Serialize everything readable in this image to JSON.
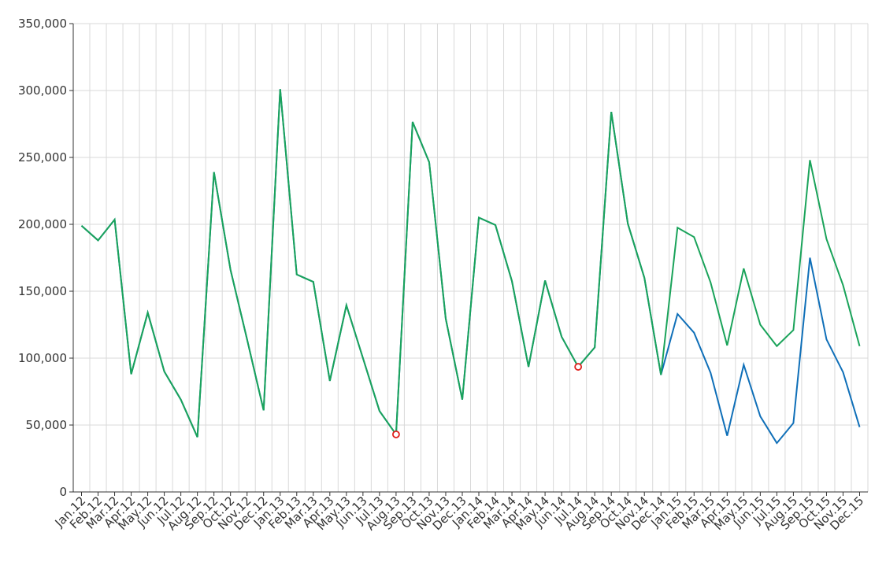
{
  "chart_data": {
    "type": "line",
    "categories": [
      "Jan.12",
      "Feb.12",
      "Mar.12",
      "Apr.12",
      "May.12",
      "Jun.12",
      "Jul.12",
      "Aug.12",
      "Sep.12",
      "Oct.12",
      "Nov.12",
      "Dec.12",
      "Jan.13",
      "Feb.13",
      "Mar.13",
      "Apr.13",
      "May.13",
      "Jun.13",
      "Jul.13",
      "Aug.13",
      "Sep.13",
      "Oct.13",
      "Nov.13",
      "Dec.13",
      "Jan.14",
      "Feb.14",
      "Mar.14",
      "Apr.14",
      "May.14",
      "Jun.14",
      "Jul.14",
      "Aug.14",
      "Sep.14",
      "Oct.14",
      "Nov.14",
      "Dec.14",
      "Jan.15",
      "Feb.15",
      "Mar.15",
      "Apr.15",
      "May.15",
      "Jun.15",
      "Jul.15",
      "Aug.15",
      "Sep.15",
      "Oct.15",
      "Nov.15",
      "Dec.15"
    ],
    "series": [
      {
        "color": "#0f6fb8",
        "values": [
          199000,
          188000,
          203500,
          88000,
          134000,
          90000,
          69000,
          41000,
          239000,
          166000,
          114000,
          61000,
          301000,
          162500,
          157000,
          83000,
          139500,
          100000,
          60500,
          43000,
          276500,
          246500,
          129500,
          69000,
          205000,
          199500,
          157500,
          93500,
          158000,
          116000,
          93500,
          108000,
          284000,
          200500,
          160000,
          87500,
          133000,
          119000,
          89000,
          42000,
          95000,
          56500,
          36500,
          51500,
          175000,
          114000,
          89500,
          48500
        ]
      },
      {
        "color": "#1aa35a",
        "values": [
          199000,
          188000,
          203500,
          88000,
          134000,
          90000,
          69000,
          41000,
          239000,
          166000,
          114000,
          61000,
          301000,
          162500,
          157000,
          83000,
          139500,
          100000,
          60500,
          43000,
          276500,
          246500,
          129500,
          69000,
          205000,
          199500,
          157500,
          93500,
          158000,
          116000,
          93500,
          108000,
          284000,
          200500,
          160000,
          87500,
          197500,
          190500,
          156500,
          109500,
          167000,
          125000,
          109000,
          121000,
          248000,
          189000,
          154500,
          109000
        ]
      }
    ],
    "markers": {
      "color": "#e0201c",
      "values": [
        null,
        null,
        null,
        null,
        null,
        null,
        null,
        null,
        null,
        null,
        null,
        null,
        null,
        null,
        null,
        null,
        null,
        null,
        null,
        43000,
        null,
        null,
        null,
        null,
        null,
        null,
        null,
        null,
        null,
        null,
        93500,
        null,
        null,
        null,
        null,
        null,
        null,
        null,
        null,
        null,
        null,
        null,
        null,
        null,
        null,
        null,
        null,
        null
      ]
    },
    "ylim": [
      0,
      350000
    ],
    "yticks": [
      0,
      {
        "value": 50000,
        "label": "50,000"
      },
      {
        "value": 100000,
        "label": "100,000"
      },
      {
        "value": 150000,
        "label": "150,000"
      },
      {
        "value": 200000,
        "label": "200,000"
      },
      {
        "value": 250000,
        "label": "250,000"
      },
      {
        "value": 300000,
        "label": "300,000"
      },
      {
        "value": 350000,
        "label": "350,000"
      }
    ],
    "grid": true
  }
}
